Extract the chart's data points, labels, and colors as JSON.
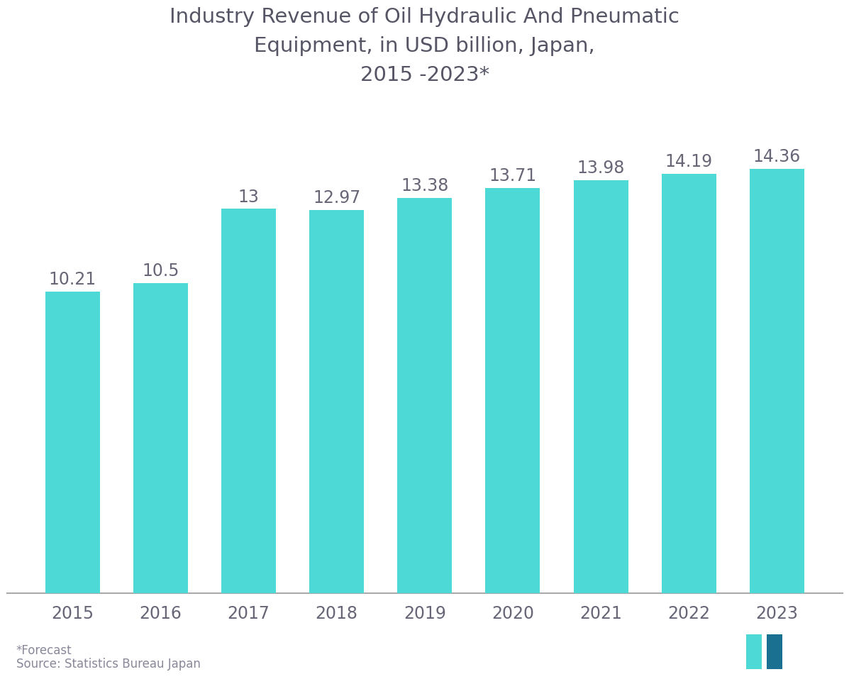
{
  "title": "Industry Revenue of Oil Hydraulic And Pneumatic\nEquipment, in USD billion, Japan,\n2015 -2023*",
  "categories": [
    "2015",
    "2016",
    "2017",
    "2018",
    "2019",
    "2020",
    "2021",
    "2022",
    "2023"
  ],
  "values": [
    10.21,
    10.5,
    13.0,
    12.97,
    13.38,
    13.71,
    13.98,
    14.19,
    14.36
  ],
  "labels": [
    "10.21",
    "10.5",
    "13",
    "12.97",
    "13.38",
    "13.71",
    "13.98",
    "14.19",
    "14.36"
  ],
  "bar_color": "#4DD9D5",
  "background_color": "#ffffff",
  "title_color": "#555566",
  "label_color": "#666677",
  "tick_color": "#666677",
  "spine_color": "#aaaaaa",
  "footer_color": "#888899",
  "footer_text1": "*Forecast",
  "footer_text2": "Source: Statistics Bureau Japan",
  "title_fontsize": 21,
  "label_fontsize": 17,
  "tick_fontsize": 17,
  "footer_fontsize": 12,
  "ylim": [
    0,
    16.5
  ],
  "bar_width": 0.62
}
